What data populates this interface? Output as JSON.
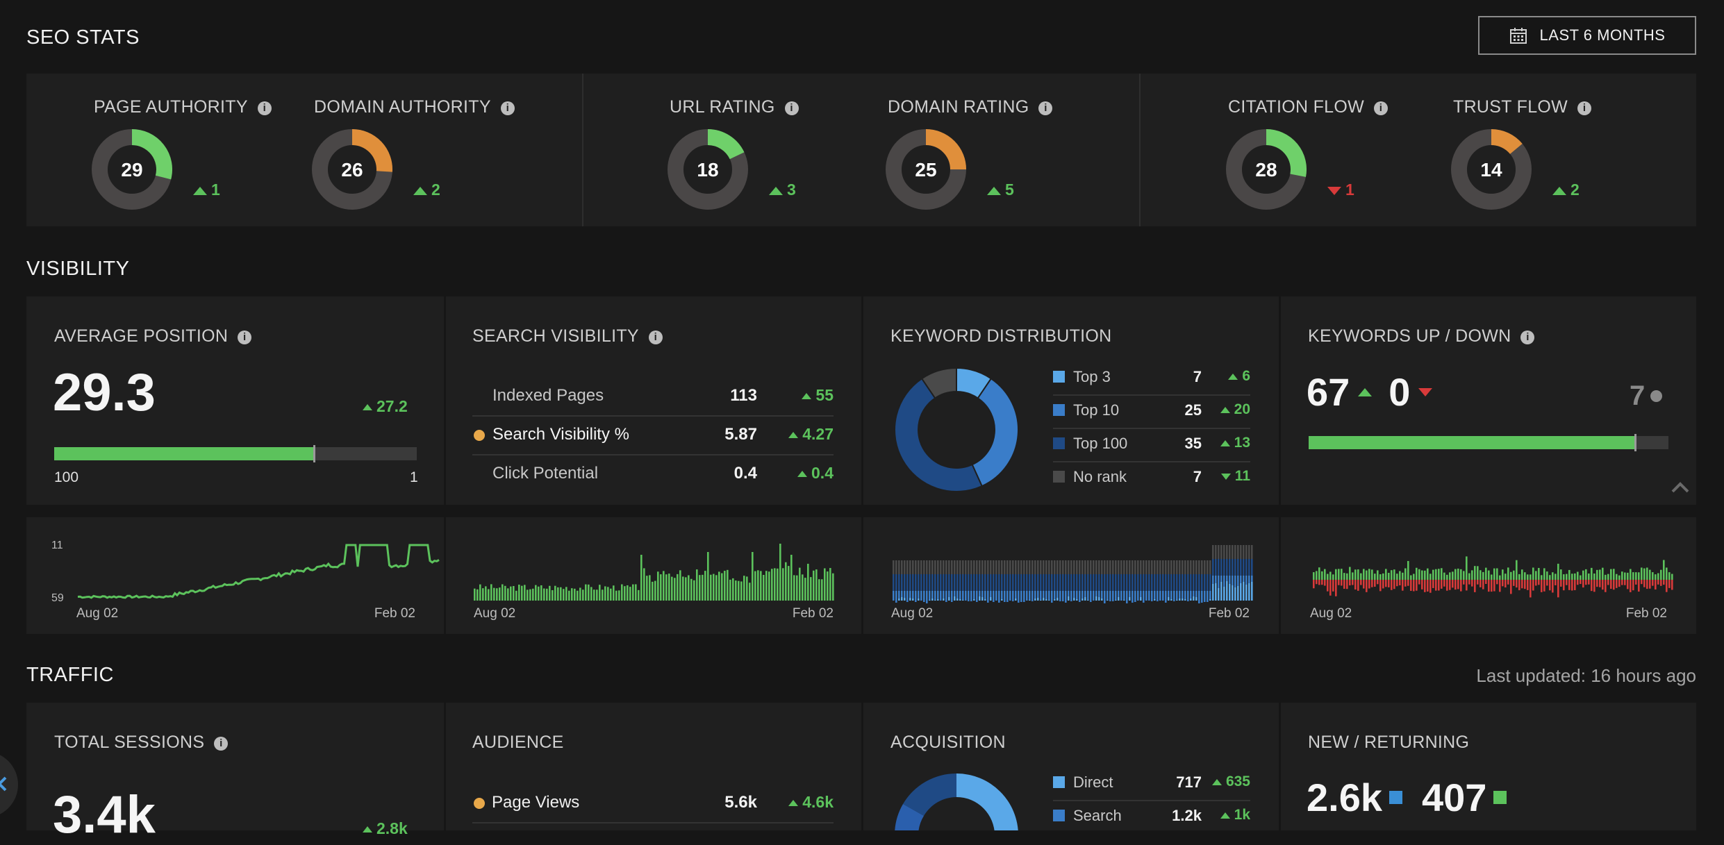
{
  "seo": {
    "title": "SEO STATS",
    "range_button": "LAST 6 MONTHS",
    "metrics": [
      {
        "label": "PAGE AUTHORITY",
        "value": "29",
        "delta": "1",
        "dir": "up",
        "color": "#6fd06a",
        "fraction": 0.29
      },
      {
        "label": "DOMAIN AUTHORITY",
        "value": "26",
        "delta": "2",
        "dir": "up",
        "color": "#e08f3b",
        "fraction": 0.26
      },
      {
        "label": "URL RATING",
        "value": "18",
        "delta": "3",
        "dir": "up",
        "color": "#6fd06a",
        "fraction": 0.18
      },
      {
        "label": "DOMAIN RATING",
        "value": "25",
        "delta": "5",
        "dir": "up",
        "color": "#e08f3b",
        "fraction": 0.25
      },
      {
        "label": "CITATION FLOW",
        "value": "28",
        "delta": "1",
        "dir": "down",
        "color": "#6fd06a",
        "fraction": 0.28
      },
      {
        "label": "TRUST FLOW",
        "value": "14",
        "delta": "2",
        "dir": "up",
        "color": "#e08f3b",
        "fraction": 0.14
      }
    ]
  },
  "visibility": {
    "title": "VISIBILITY",
    "avg_position": {
      "label": "AVERAGE POSITION",
      "value": "29.3",
      "delta": "27.2",
      "scale_left": "100",
      "scale_right": "1",
      "fill_fraction": 0.715
    },
    "search_visibility": {
      "label": "SEARCH VISIBILITY",
      "rows": [
        {
          "name": "Indexed Pages",
          "value": "113",
          "delta": "55"
        },
        {
          "name": "Search Visibility %",
          "value": "5.87",
          "delta": "4.27"
        },
        {
          "name": "Click Potential",
          "value": "0.4",
          "delta": "0.4"
        }
      ]
    },
    "keyword_distribution": {
      "label": "KEYWORD DISTRIBUTION",
      "rows": [
        {
          "name": "Top 3",
          "value": "7",
          "delta": "6",
          "dir": "up",
          "color": "#5aa8e8"
        },
        {
          "name": "Top 10",
          "value": "25",
          "delta": "20",
          "dir": "up",
          "color": "#3a7dc9"
        },
        {
          "name": "Top 100",
          "value": "35",
          "delta": "13",
          "dir": "up",
          "color": "#1f4a85"
        },
        {
          "name": "No rank",
          "value": "7",
          "delta": "11",
          "dir": "down",
          "color": "#4a4a4a"
        }
      ]
    },
    "keywords_updown": {
      "label": "KEYWORDS UP / DOWN",
      "up": "67",
      "down": "0",
      "neutral": "7",
      "fill_fraction": 0.905
    },
    "sparks": {
      "start": "Aug 02",
      "end": "Feb 02",
      "pos_top": "11",
      "pos_bottom": "59"
    }
  },
  "traffic": {
    "title": "TRAFFIC",
    "updated": "Last updated: 16 hours ago",
    "total_sessions": {
      "label": "TOTAL SESSIONS",
      "value": "3.4k",
      "delta": "2.8k"
    },
    "audience": {
      "label": "AUDIENCE",
      "rows": [
        {
          "name": "Page Views",
          "value": "5.6k",
          "delta": "4.6k"
        }
      ]
    },
    "acquisition": {
      "label": "ACQUISITION",
      "rows": [
        {
          "name": "Direct",
          "value": "717",
          "delta": "635",
          "color": "#5aa8e8"
        },
        {
          "name": "Search",
          "value": "1.2k",
          "delta": "1k",
          "color": "#3a7dc9"
        }
      ]
    },
    "new_returning": {
      "label": "NEW / RETURNING",
      "new": "2.6k",
      "returning": "407"
    }
  },
  "colors": {
    "green": "#5cc25c",
    "red": "#d83a3a",
    "orange": "#e08f3b",
    "dot": "#e8a84a"
  }
}
